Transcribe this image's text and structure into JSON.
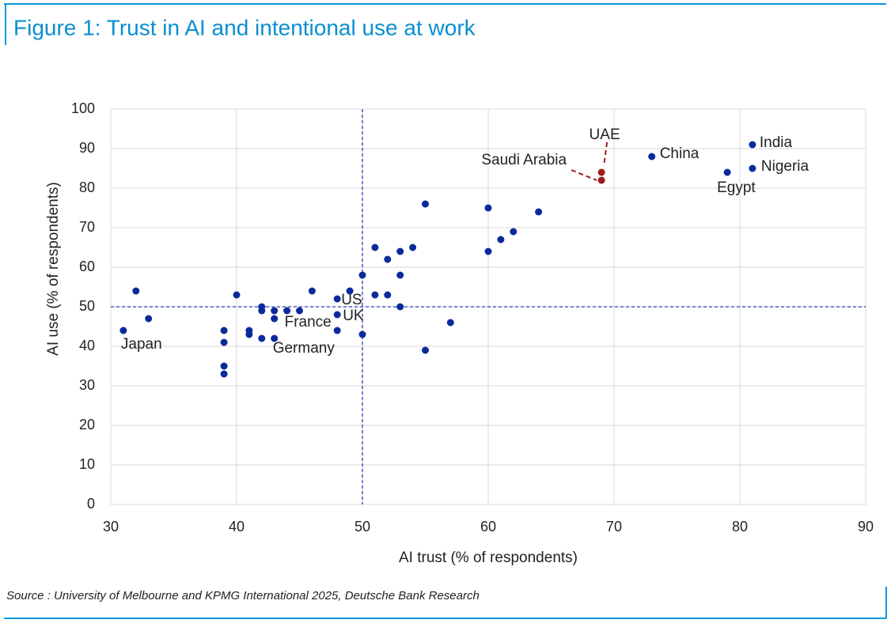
{
  "chart_data": {
    "type": "scatter",
    "title": "Figure 1: Trust in AI and intentional use at work",
    "xlabel": "AI trust (% of respondents)",
    "ylabel": "AI use (% of respondents)",
    "source": "Source : University of Melbourne and KPMG International 2025, Deutsche Bank Research",
    "xlim": [
      30,
      90
    ],
    "xticks": [
      30,
      40,
      50,
      60,
      70,
      80,
      90
    ],
    "ylim": [
      0,
      100
    ],
    "yticks": [
      0,
      10,
      20,
      30,
      40,
      50,
      60,
      70,
      80,
      90,
      100
    ],
    "grid": true,
    "reference_lines": {
      "x": 50,
      "y": 50,
      "color": "#2b3fb0"
    },
    "series": [
      {
        "color": "#0a2a9c",
        "x": [
          31,
          32,
          33,
          39,
          39,
          39,
          39,
          40,
          41,
          41,
          42,
          42,
          42,
          43,
          43,
          43,
          44,
          45,
          46,
          48,
          48,
          48,
          49,
          50,
          50,
          51,
          51,
          52,
          52,
          53,
          53,
          53,
          54,
          55,
          55,
          57,
          60,
          60,
          61,
          62,
          64,
          73,
          79,
          81,
          81
        ],
        "values": [
          44,
          54,
          47,
          44,
          41,
          35,
          33,
          53,
          44,
          43,
          50,
          49,
          42,
          49,
          47,
          42,
          49,
          49,
          54,
          52,
          48,
          44,
          54,
          58,
          43,
          65,
          53,
          62,
          53,
          64,
          58,
          50,
          65,
          76,
          39,
          46,
          75,
          64,
          67,
          69,
          74,
          88,
          84,
          91,
          85
        ],
        "labels": [
          "Japan",
          null,
          null,
          null,
          null,
          null,
          null,
          null,
          null,
          null,
          null,
          null,
          null,
          null,
          null,
          "Germany",
          "France",
          null,
          null,
          "US",
          "UK",
          null,
          null,
          null,
          null,
          null,
          null,
          null,
          null,
          null,
          null,
          null,
          null,
          null,
          null,
          null,
          null,
          null,
          null,
          null,
          null,
          "China",
          "Egypt",
          "India",
          "Nigeria"
        ]
      },
      {
        "color": "#9b1c1c",
        "x": [
          69,
          69
        ],
        "values": [
          84,
          82
        ],
        "labels": [
          "UAE",
          "Saudi Arabia"
        ]
      }
    ]
  }
}
